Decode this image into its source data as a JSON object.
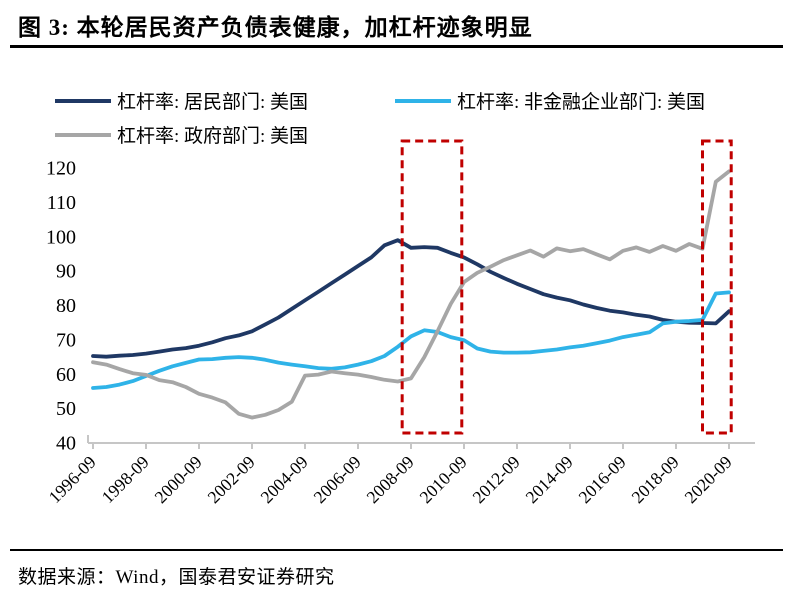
{
  "page": {
    "title": "图 3:  本轮居民资产负债表健康，加杠杆迹象明显",
    "source": "数据来源：Wind，国泰君安证券研究"
  },
  "legend": {
    "items": [
      {
        "label": "杠杆率: 居民部门: 美国",
        "color": "#1F3864"
      },
      {
        "label": "杠杆率: 非金融企业部门: 美国",
        "color": "#2FB3E8"
      },
      {
        "label": "杠杆率: 政府部门: 美国",
        "color": "#A6A6A6"
      }
    ]
  },
  "chart_data": {
    "type": "line",
    "title": "图 3:  本轮居民资产负债表健康，加杠杆迹象明显",
    "xlabel": "",
    "ylabel": "",
    "ylim": [
      40,
      120
    ],
    "y_ticks": [
      40,
      50,
      60,
      70,
      80,
      90,
      100,
      110,
      120
    ],
    "x_tick_labels": [
      "1996-09",
      "1998-09",
      "2000-09",
      "2002-09",
      "2004-09",
      "2006-09",
      "2008-09",
      "2010-09",
      "2012-09",
      "2014-09",
      "2016-09",
      "2018-09",
      "2020-09"
    ],
    "x_start": "1996-09",
    "x_step_months": 6,
    "grid": false,
    "legend_position": "top-left",
    "axis_color": "#C6C6C6",
    "highlight_color": "#C00000",
    "highlights": [
      {
        "x1": "2008-05",
        "x2": "2010-08",
        "color": "#C00000"
      },
      {
        "x1": "2019-09",
        "x2": "2020-10",
        "color": "#C00000"
      }
    ],
    "series": [
      {
        "name": "杠杆率: 居民部门: 美国",
        "color": "#1F3864",
        "values": [
          65.3,
          65.1,
          65.4,
          65.6,
          66.0,
          66.6,
          67.2,
          67.6,
          68.3,
          69.3,
          70.5,
          71.3,
          72.5,
          74.5,
          76.5,
          79.0,
          81.5,
          84.0,
          86.5,
          89.0,
          91.5,
          94.0,
          97.5,
          99.0,
          96.8,
          97.0,
          96.8,
          95.3,
          94.0,
          92.0,
          89.8,
          88.0,
          86.3,
          84.8,
          83.3,
          82.3,
          81.5,
          80.3,
          79.3,
          78.5,
          78.0,
          77.3,
          76.8,
          75.8,
          75.3,
          75.0,
          74.9,
          74.8,
          78.3
        ]
      },
      {
        "name": "杠杆率: 非金融企业部门: 美国",
        "color": "#2FB3E8",
        "values": [
          56.0,
          56.3,
          57.0,
          58.0,
          59.5,
          61.0,
          62.3,
          63.3,
          64.3,
          64.4,
          64.8,
          65.0,
          64.8,
          64.2,
          63.4,
          62.8,
          62.3,
          61.8,
          61.6,
          62.0,
          62.8,
          63.8,
          65.3,
          68.0,
          71.0,
          72.8,
          72.3,
          70.8,
          69.9,
          67.5,
          66.6,
          66.3,
          66.3,
          66.4,
          66.8,
          67.2,
          67.8,
          68.3,
          69.0,
          69.8,
          70.8,
          71.5,
          72.2,
          74.8,
          75.3,
          75.5,
          75.8,
          83.5,
          83.8
        ]
      },
      {
        "name": "杠杆率: 政府部门: 美国",
        "color": "#A6A6A6",
        "values": [
          63.5,
          62.8,
          61.5,
          60.3,
          59.8,
          58.3,
          57.7,
          56.3,
          54.3,
          53.2,
          51.8,
          48.5,
          47.4,
          48.2,
          49.6,
          52.0,
          59.6,
          59.9,
          60.8,
          60.3,
          59.9,
          59.2,
          58.4,
          57.9,
          58.8,
          65.0,
          72.5,
          80.5,
          86.8,
          89.5,
          91.3,
          93.2,
          94.6,
          96.0,
          94.2,
          96.6,
          95.8,
          96.4,
          94.9,
          93.4,
          95.9,
          96.9,
          95.6,
          97.3,
          95.9,
          97.9,
          96.5,
          116.0,
          119.0
        ]
      }
    ]
  }
}
